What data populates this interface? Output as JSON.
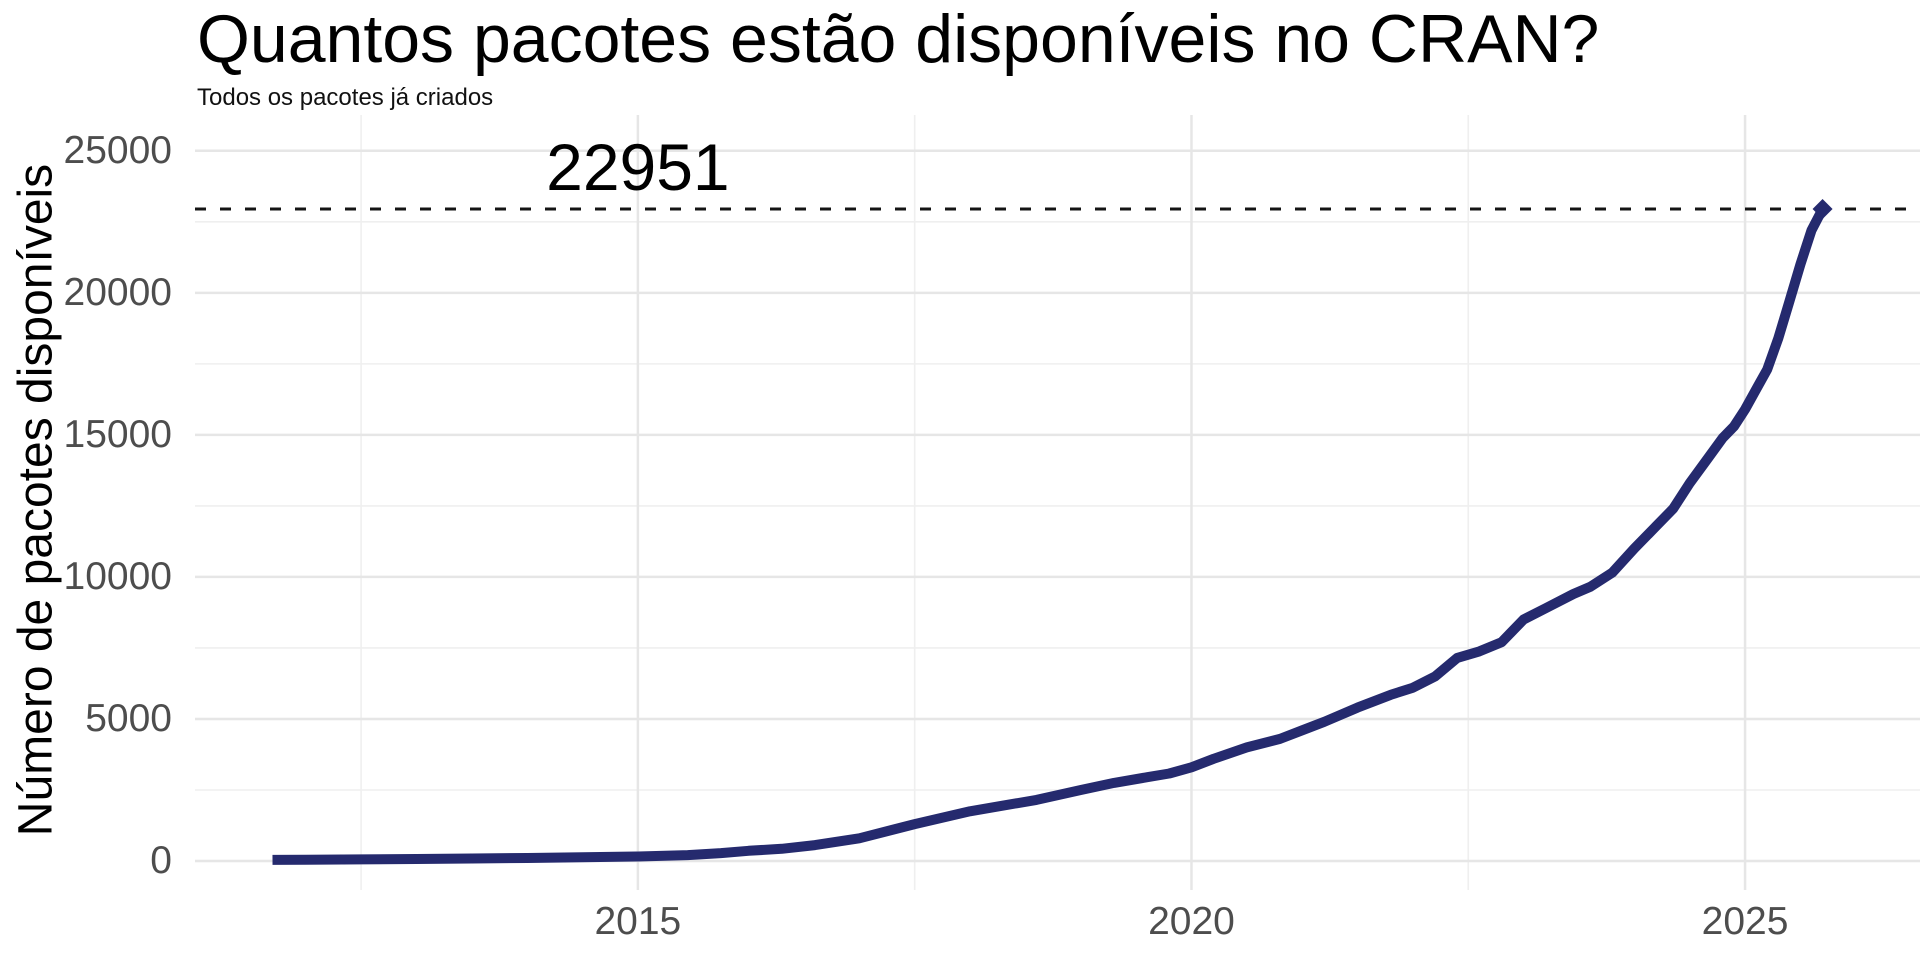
{
  "title": "Quantos pacotes estão disponíveis no CRAN?",
  "subtitle": "Todos os pacotes já criados",
  "y_axis_title": "Número de pacotes disponíveis",
  "annotation": {
    "label": "22951",
    "value": 22951
  },
  "colors": {
    "line": "#252a6e",
    "marker": "#252a6e",
    "annotation_line": "#141414",
    "grid_major": "#e6e6e6",
    "grid_minor": "#efefef",
    "tick_text": "#4d4d4d",
    "title_text": "#000000",
    "background": "#ffffff"
  },
  "chart_data": {
    "type": "line",
    "title": "Quantos pacotes estão disponíveis no CRAN?",
    "subtitle": "Todos os pacotes já criados",
    "xlabel": "",
    "ylabel": "Número de pacotes disponíveis",
    "grid": "on",
    "legend": "none",
    "xlim": [
      2011.0,
      2026.58
    ],
    "ylim": [
      -1020,
      26260
    ],
    "x_major_breaks": [
      2015,
      2020,
      2025
    ],
    "x_tick_labels": [
      "2015",
      "2020",
      "2025"
    ],
    "x_minor_breaks": [
      2012.5,
      2017.5,
      2022.5
    ],
    "y_major_breaks": [
      0,
      5000,
      10000,
      15000,
      20000,
      25000
    ],
    "y_tick_labels": [
      "0",
      "5000",
      "10000",
      "15000",
      "20000",
      "25000"
    ],
    "y_minor_breaks": [
      2500,
      7500,
      12500,
      17500,
      22500
    ],
    "hline": {
      "value": 22951,
      "label": "22951",
      "label_x": 2015
    },
    "series": [
      {
        "name": "pacotes-disponiveis",
        "points": [
          [
            2011.7,
            40
          ],
          [
            2012.0,
            48
          ],
          [
            2012.5,
            58
          ],
          [
            2013.0,
            72
          ],
          [
            2013.5,
            88
          ],
          [
            2014.0,
            108
          ],
          [
            2014.5,
            130
          ],
          [
            2015.0,
            160
          ],
          [
            2015.45,
            210
          ],
          [
            2015.75,
            280
          ],
          [
            2016.0,
            360
          ],
          [
            2016.3,
            430
          ],
          [
            2016.6,
            560
          ],
          [
            2017.0,
            800
          ],
          [
            2017.5,
            1300
          ],
          [
            2018.0,
            1750
          ],
          [
            2018.3,
            1950
          ],
          [
            2018.6,
            2150
          ],
          [
            2019.0,
            2500
          ],
          [
            2019.3,
            2750
          ],
          [
            2019.6,
            2950
          ],
          [
            2019.8,
            3080
          ],
          [
            2020.0,
            3300
          ],
          [
            2020.2,
            3600
          ],
          [
            2020.5,
            4000
          ],
          [
            2020.8,
            4300
          ],
          [
            2021.0,
            4600
          ],
          [
            2021.2,
            4900
          ],
          [
            2021.5,
            5400
          ],
          [
            2021.8,
            5850
          ],
          [
            2022.0,
            6100
          ],
          [
            2022.2,
            6500
          ],
          [
            2022.4,
            7150
          ],
          [
            2022.6,
            7380
          ],
          [
            2022.8,
            7700
          ],
          [
            2023.0,
            8500
          ],
          [
            2023.2,
            8900
          ],
          [
            2023.45,
            9400
          ],
          [
            2023.6,
            9650
          ],
          [
            2023.8,
            10150
          ],
          [
            2024.0,
            11000
          ],
          [
            2024.2,
            11800
          ],
          [
            2024.35,
            12400
          ],
          [
            2024.5,
            13300
          ],
          [
            2024.65,
            14100
          ],
          [
            2024.8,
            14900
          ],
          [
            2024.9,
            15300
          ],
          [
            2025.0,
            15900
          ],
          [
            2025.1,
            16600
          ],
          [
            2025.2,
            17300
          ],
          [
            2025.3,
            18400
          ],
          [
            2025.4,
            19700
          ],
          [
            2025.5,
            21000
          ],
          [
            2025.6,
            22200
          ],
          [
            2025.7,
            22951
          ]
        ]
      }
    ]
  }
}
